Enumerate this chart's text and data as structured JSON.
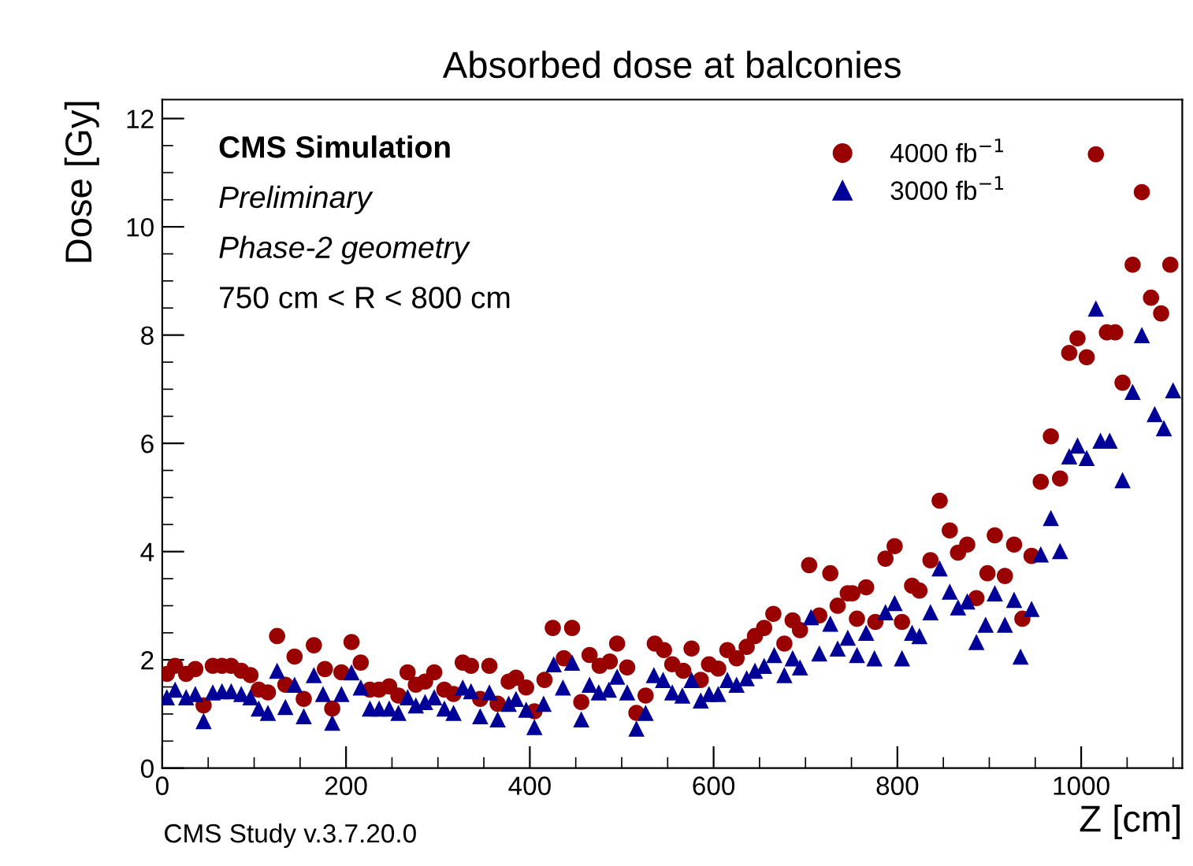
{
  "chart_data": {
    "type": "scatter",
    "title": "Absorbed dose at balconies",
    "xlabel": "Z [cm]",
    "ylabel": "Dose [Gy]",
    "xlim": [
      0,
      1110
    ],
    "ylim": [
      0,
      12.35
    ],
    "xticks": [
      0,
      200,
      400,
      600,
      800,
      1000
    ],
    "yticks": [
      0,
      2,
      4,
      6,
      8,
      10,
      12
    ],
    "grid": false,
    "legend": "top right",
    "annotations": [
      "CMS Simulation",
      "Preliminary",
      "Phase-2 geometry",
      "750 cm < R < 800 cm",
      "CMS Study v.3.7.20.0"
    ],
    "series": [
      {
        "name": "4000 fb$^{−1}$",
        "color": "#990000",
        "marker": "circle",
        "x": [
          5,
          14,
          26,
          36,
          45,
          55,
          65,
          75,
          86,
          96,
          105,
          115,
          125,
          134,
          144,
          154,
          165,
          177,
          185,
          195,
          206,
          216,
          226,
          236,
          247,
          257,
          267,
          276,
          286,
          296,
          307,
          317,
          327,
          336,
          346,
          356,
          365,
          377,
          385,
          396,
          405,
          416,
          425,
          437,
          446,
          456,
          465,
          476,
          487,
          495,
          506,
          516,
          526,
          536,
          546,
          555,
          567,
          576,
          586,
          595,
          605,
          615,
          625,
          636,
          645,
          655,
          665,
          677,
          686,
          694,
          704,
          715,
          727,
          735,
          746,
          751,
          756,
          766,
          776,
          787,
          797,
          805,
          816,
          824,
          836,
          846,
          857,
          866,
          876,
          886,
          898,
          906,
          917,
          927,
          936,
          946,
          956,
          967,
          977,
          987,
          996,
          1006,
          1016,
          1028,
          1037,
          1045,
          1056,
          1066,
          1076,
          1087,
          1097
        ],
        "values": [
          1.74,
          1.89,
          1.74,
          1.83,
          1.16,
          1.89,
          1.89,
          1.89,
          1.8,
          1.72,
          1.45,
          1.4,
          2.44,
          1.54,
          2.06,
          1.28,
          2.27,
          1.83,
          1.1,
          1.77,
          2.33,
          1.95,
          1.45,
          1.45,
          1.51,
          1.34,
          1.77,
          1.54,
          1.6,
          1.77,
          1.45,
          1.37,
          1.95,
          1.89,
          1.28,
          1.89,
          1.19,
          1.6,
          1.67,
          1.49,
          1.05,
          1.63,
          2.59,
          2.03,
          2.59,
          1.22,
          2.09,
          1.89,
          1.97,
          2.3,
          1.86,
          1.02,
          1.34,
          2.3,
          2.18,
          1.92,
          1.8,
          2.21,
          1.63,
          1.92,
          1.84,
          2.18,
          2.03,
          2.24,
          2.44,
          2.59,
          2.85,
          2.3,
          2.73,
          2.55,
          3.75,
          2.82,
          3.6,
          3.0,
          3.23,
          3.23,
          2.76,
          3.34,
          2.7,
          3.87,
          4.1,
          2.7,
          3.37,
          3.28,
          3.84,
          4.94,
          4.39,
          3.98,
          4.13,
          3.14,
          3.6,
          4.3,
          3.55,
          4.13,
          2.76,
          3.92,
          5.29,
          6.13,
          5.35,
          7.67,
          7.94,
          7.59,
          11.34,
          8.05,
          8.05,
          7.12,
          9.3,
          10.64,
          8.69,
          8.4,
          9.3
        ]
      },
      {
        "name": "3000 fb$^{−1}$",
        "color": "#000099",
        "marker": "triangle",
        "x": [
          5,
          14,
          26,
          36,
          45,
          55,
          65,
          75,
          86,
          96,
          105,
          115,
          125,
          134,
          144,
          154,
          165,
          175,
          185,
          195,
          206,
          216,
          226,
          236,
          247,
          257,
          267,
          276,
          286,
          296,
          307,
          317,
          327,
          336,
          346,
          356,
          365,
          377,
          385,
          396,
          405,
          415,
          426,
          436,
          446,
          456,
          465,
          475,
          486,
          495,
          506,
          516,
          526,
          535,
          545,
          555,
          566,
          576,
          586,
          595,
          605,
          615,
          625,
          636,
          645,
          655,
          666,
          677,
          686,
          694,
          706,
          715,
          727,
          735,
          746,
          756,
          766,
          775,
          787,
          797,
          805,
          816,
          824,
          836,
          846,
          857,
          866,
          876,
          886,
          896,
          906,
          917,
          927,
          934,
          946,
          956,
          967,
          977,
          987,
          996,
          1006,
          1016,
          1021,
          1031,
          1045,
          1056,
          1066,
          1080,
          1090,
          1100
        ],
        "values": [
          1.31,
          1.45,
          1.31,
          1.37,
          0.87,
          1.4,
          1.42,
          1.42,
          1.37,
          1.31,
          1.1,
          1.02,
          1.8,
          1.13,
          1.54,
          0.96,
          1.72,
          1.37,
          0.84,
          1.37,
          1.77,
          1.49,
          1.1,
          1.1,
          1.1,
          1.02,
          1.31,
          1.16,
          1.22,
          1.31,
          1.1,
          1.02,
          1.49,
          1.42,
          0.96,
          1.4,
          0.9,
          1.19,
          1.28,
          1.08,
          0.76,
          1.19,
          1.92,
          1.49,
          1.95,
          0.9,
          1.54,
          1.4,
          1.45,
          1.69,
          1.4,
          0.73,
          1.02,
          1.72,
          1.63,
          1.4,
          1.34,
          1.63,
          1.25,
          1.37,
          1.37,
          1.63,
          1.54,
          1.66,
          1.8,
          1.89,
          2.09,
          1.72,
          2.03,
          1.86,
          2.79,
          2.12,
          2.67,
          2.21,
          2.41,
          2.09,
          2.5,
          2.03,
          2.88,
          3.05,
          2.03,
          2.5,
          2.44,
          2.88,
          3.69,
          3.26,
          2.97,
          3.08,
          2.33,
          2.65,
          3.23,
          2.65,
          3.11,
          2.06,
          2.94,
          3.95,
          4.62,
          4.01,
          5.76,
          5.96,
          5.73,
          8.49,
          6.05,
          6.05,
          5.32,
          6.95,
          8.0,
          6.54,
          6.28,
          6.98
        ]
      }
    ]
  }
}
